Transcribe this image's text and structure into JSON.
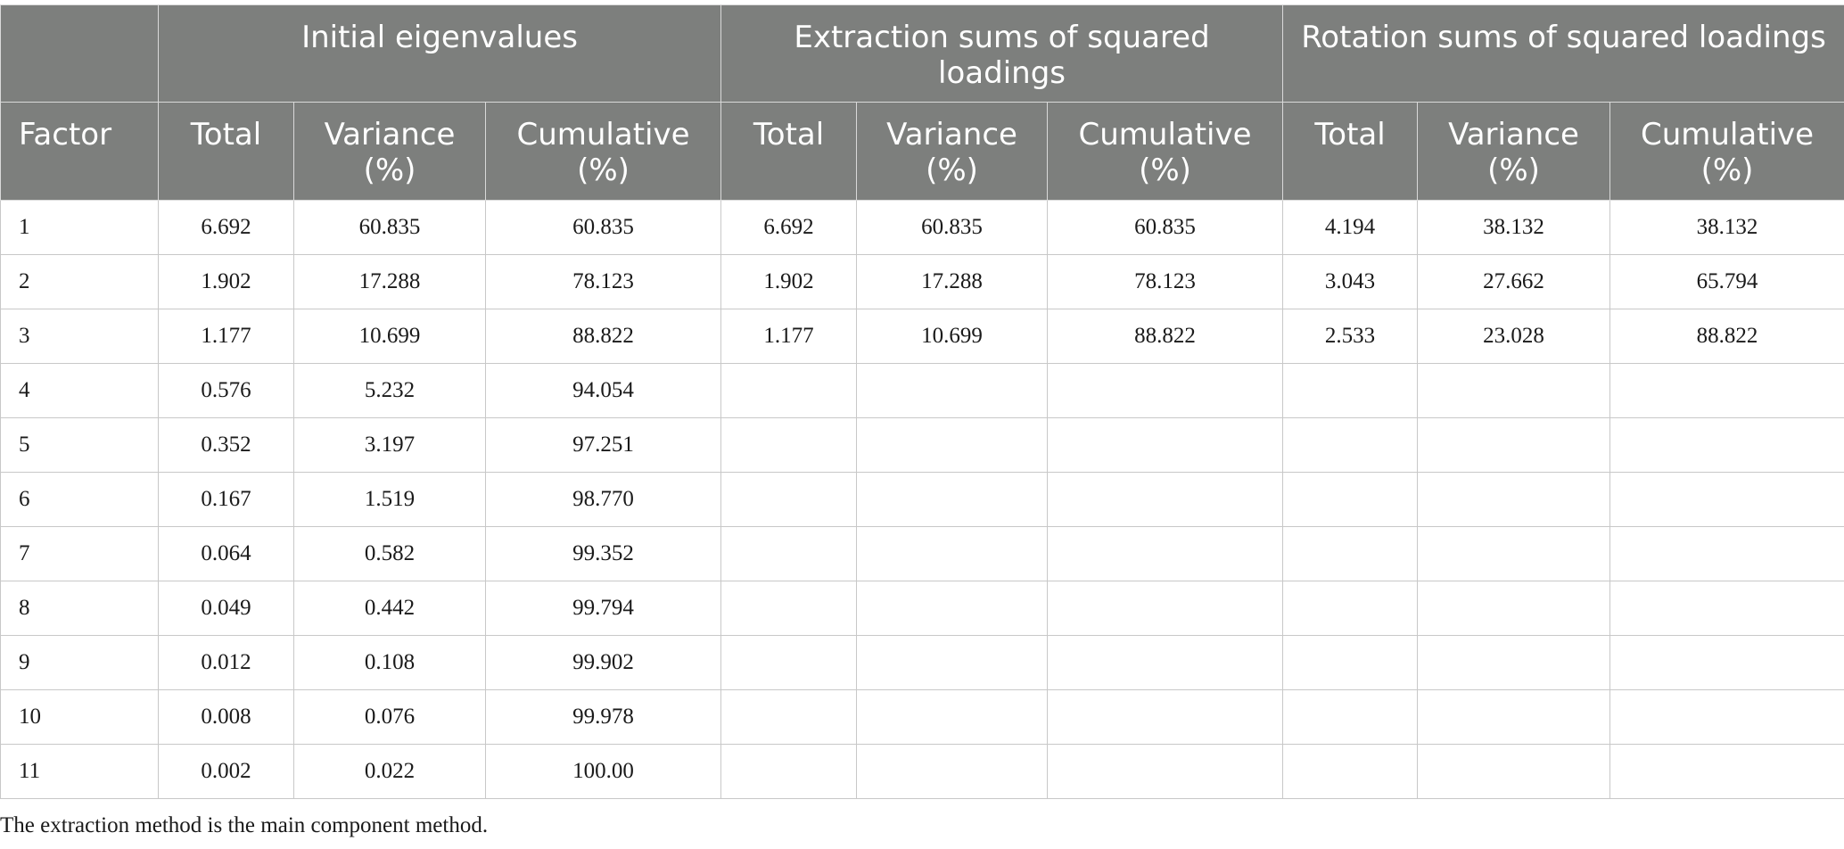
{
  "table": {
    "groups": [
      {
        "label": ""
      },
      {
        "label": "Initial eigenvalues"
      },
      {
        "label": "Extraction sums of squared loadings"
      },
      {
        "label": "Rotation sums of squared loadings"
      }
    ],
    "columns": [
      "Factor",
      "Total",
      "Variance (%)",
      "Cumulative (%)",
      "Total",
      "Variance (%)",
      "Cumulative (%)",
      "Total",
      "Variance (%)",
      "Cumulative (%)"
    ],
    "rows": [
      [
        "1",
        "6.692",
        "60.835",
        "60.835",
        "6.692",
        "60.835",
        "60.835",
        "4.194",
        "38.132",
        "38.132"
      ],
      [
        "2",
        "1.902",
        "17.288",
        "78.123",
        "1.902",
        "17.288",
        "78.123",
        "3.043",
        "27.662",
        "65.794"
      ],
      [
        "3",
        "1.177",
        "10.699",
        "88.822",
        "1.177",
        "10.699",
        "88.822",
        "2.533",
        "23.028",
        "88.822"
      ],
      [
        "4",
        "0.576",
        "5.232",
        "94.054",
        "",
        "",
        "",
        "",
        "",
        ""
      ],
      [
        "5",
        "0.352",
        "3.197",
        "97.251",
        "",
        "",
        "",
        "",
        "",
        ""
      ],
      [
        "6",
        "0.167",
        "1.519",
        "98.770",
        "",
        "",
        "",
        "",
        "",
        ""
      ],
      [
        "7",
        "0.064",
        "0.582",
        "99.352",
        "",
        "",
        "",
        "",
        "",
        ""
      ],
      [
        "8",
        "0.049",
        "0.442",
        "99.794",
        "",
        "",
        "",
        "",
        "",
        ""
      ],
      [
        "9",
        "0.012",
        "0.108",
        "99.902",
        "",
        "",
        "",
        "",
        "",
        ""
      ],
      [
        "10",
        "0.008",
        "0.076",
        "99.978",
        "",
        "",
        "",
        "",
        "",
        ""
      ],
      [
        "11",
        "0.002",
        "0.022",
        "100.00",
        "",
        "",
        "",
        "",
        "",
        ""
      ]
    ]
  },
  "footnote": "The extraction method is the main component method."
}
